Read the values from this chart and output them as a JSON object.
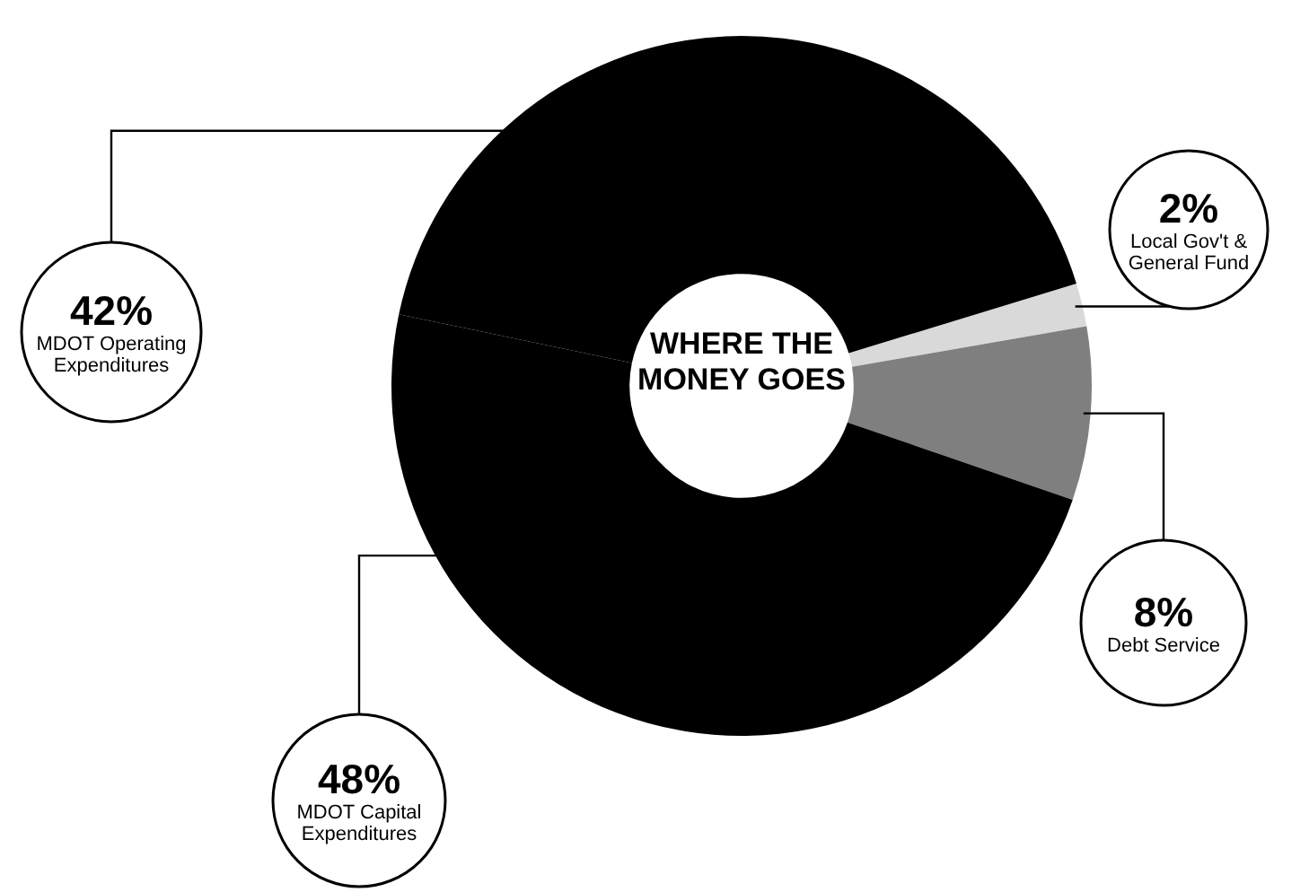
{
  "chart_data": {
    "type": "donut",
    "title": "WHERE THE MONEY GOES",
    "categories": [
      "Local Gov't & General Fund",
      "Debt Service",
      "MDOT Capital Expenditures",
      "MDOT Operating Expenditures"
    ],
    "values": [
      2,
      8,
      48,
      42
    ],
    "value_labels": [
      "2%",
      "8%",
      "48%",
      "42%"
    ],
    "colors": [
      "#d9d9d9",
      "#7f7f7f",
      "#000000",
      "#000000"
    ]
  }
}
